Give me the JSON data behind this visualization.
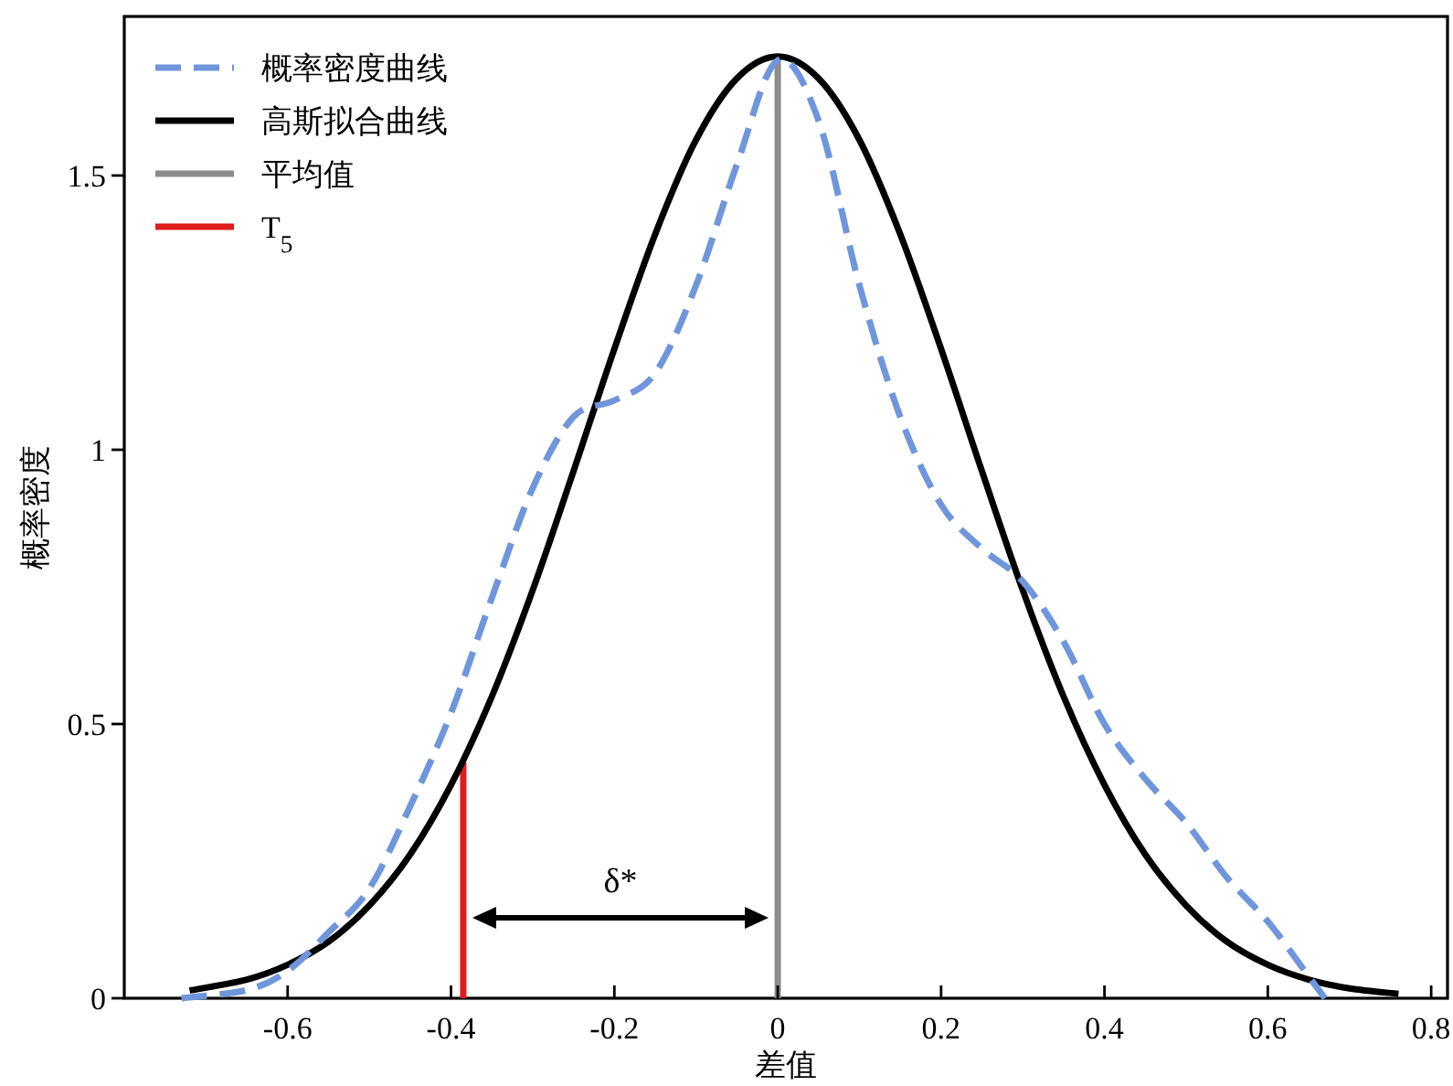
{
  "chart_data": {
    "type": "line",
    "xlabel": "差值",
    "ylabel": "概率密度",
    "xlim": [
      -0.8,
      0.82
    ],
    "ylim": [
      0,
      1.79
    ],
    "xticks": [
      -0.6,
      -0.4,
      -0.2,
      0,
      0.2,
      0.4,
      0.6,
      0.8
    ],
    "yticks": [
      0,
      0.5,
      1,
      1.5
    ],
    "legend": "top left",
    "annotations": [
      "δ*"
    ],
    "series": [
      {
        "name": "概率密度曲线",
        "color": "#6f96dc",
        "line_style": "dashed",
        "x": [
          -0.73,
          -0.65,
          -0.6,
          -0.55,
          -0.5,
          -0.45,
          -0.4,
          -0.35,
          -0.3,
          -0.25,
          -0.2,
          -0.15,
          -0.1,
          -0.05,
          0,
          0.05,
          0.1,
          0.15,
          0.2,
          0.25,
          0.3,
          0.35,
          0.4,
          0.45,
          0.5,
          0.55,
          0.6,
          0.65,
          0.67
        ],
        "values": [
          0,
          0.015,
          0.05,
          0.12,
          0.2,
          0.35,
          0.52,
          0.73,
          0.93,
          1.06,
          1.09,
          1.14,
          1.3,
          1.52,
          1.71,
          1.6,
          1.3,
          1.06,
          0.9,
          0.82,
          0.76,
          0.65,
          0.5,
          0.4,
          0.32,
          0.22,
          0.14,
          0.04,
          0
        ]
      },
      {
        "name": "高斯拟合曲线",
        "color": "#000000",
        "line_style": "solid",
        "x": [
          -0.72,
          -0.65,
          -0.6,
          -0.55,
          -0.5,
          -0.45,
          -0.4,
          -0.35,
          -0.3,
          -0.25,
          -0.2,
          -0.15,
          -0.1,
          -0.05,
          0,
          0.05,
          0.1,
          0.15,
          0.2,
          0.25,
          0.3,
          0.35,
          0.4,
          0.45,
          0.5,
          0.55,
          0.6,
          0.65,
          0.7,
          0.76
        ],
        "values": [
          0.014,
          0.034,
          0.061,
          0.103,
          0.169,
          0.262,
          0.389,
          0.55,
          0.744,
          0.961,
          1.184,
          1.393,
          1.565,
          1.677,
          1.717,
          1.677,
          1.565,
          1.393,
          1.184,
          0.961,
          0.744,
          0.55,
          0.389,
          0.262,
          0.169,
          0.103,
          0.061,
          0.034,
          0.018,
          0.008
        ]
      },
      {
        "name": "平均值",
        "color": "#8c8c8c",
        "line_style": "solid",
        "x": [
          0,
          0
        ],
        "values": [
          0,
          1.717
        ]
      },
      {
        "name": "T$_{5}$",
        "color": "#e01b1b",
        "line_style": "solid",
        "x": [
          -0.385,
          -0.385
        ],
        "values": [
          0,
          0.43
        ]
      }
    ]
  }
}
